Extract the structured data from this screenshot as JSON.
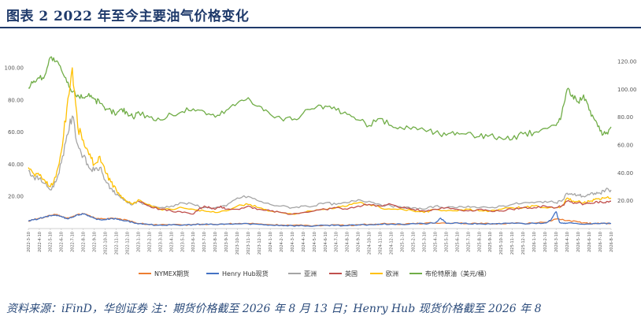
{
  "header": {
    "title": "图表 2    2022 年至今主要油气价格变化"
  },
  "footer": {
    "source": "资料来源：iFinD，华创证券  注：期货价格截至 2026 年 8 月 13 日；Henry Hub 现货价格截至 2026 年 8"
  },
  "chart_data": {
    "type": "line",
    "grid": false,
    "legend_position": "bottom",
    "y_left": {
      "ticks": [
        "20.00",
        "40.00",
        "60.00",
        "80.00",
        "100.00"
      ],
      "range": [
        0,
        115
      ]
    },
    "y_right": {
      "ticks": [
        "20.00",
        "40.00",
        "60.00",
        "80.00",
        "100.00",
        "120.00"
      ],
      "range": [
        0,
        130
      ]
    },
    "x_ticks": [
      "2022-3-10",
      "2022-4-10",
      "2022-5-10",
      "2022-6-10",
      "2022-7-10",
      "2022-8-10",
      "2022-9-10",
      "2022-10-10",
      "2022-11-10",
      "2022-12-10",
      "2023-1-10",
      "2023-2-10",
      "2023-3-10",
      "2023-4-10",
      "2023-5-10",
      "2023-6-10",
      "2023-7-10",
      "2023-8-10",
      "2023-9-10",
      "2023-10-10",
      "2023-11-10",
      "2023-12-10",
      "2024-1-10",
      "2024-2-10",
      "2024-3-10",
      "2024-4-10",
      "2024-5-10",
      "2024-6-10",
      "2024-7-10",
      "2024-8-10",
      "2024-9-10",
      "2024-10-10",
      "2024-11-10",
      "2024-12-10",
      "2025-1-10",
      "2025-2-10",
      "2025-3-10",
      "2025-4-10",
      "2025-5-10",
      "2025-6-10",
      "2025-7-10",
      "2025-8-10",
      "2025-9-10",
      "2025-10-10",
      "2025-11-10",
      "2025-12-10",
      "2026-1-10",
      "2026-2-10",
      "2026-3-10",
      "2026-4-10",
      "2026-5-10",
      "2026-6-10",
      "2026-7-10",
      "2026-8-10"
    ],
    "series": [
      {
        "name": "NYMEX期货",
        "axis": "left",
        "color": "#ed7d31",
        "x": [
          0,
          0.5,
          1,
          1.5,
          2,
          2.5,
          3,
          3.5,
          4,
          4.5,
          5,
          5.5,
          6,
          6.5,
          7,
          7.5,
          8,
          8.5,
          9,
          9.5,
          10,
          11,
          12,
          13,
          14,
          15,
          16,
          17,
          18,
          19,
          20,
          21,
          22,
          23,
          24,
          25,
          26,
          27,
          28,
          29,
          30,
          31,
          32,
          33,
          34,
          35,
          36,
          37,
          38,
          39,
          40,
          41,
          42,
          43,
          44,
          45,
          46,
          47,
          48,
          49,
          50,
          50.5,
          51,
          51.5,
          52,
          52.5,
          53
        ],
        "values": [
          4.7,
          5.6,
          6.3,
          7.2,
          8.2,
          8.6,
          7.7,
          6.4,
          7.3,
          8.8,
          9.2,
          8.1,
          6.6,
          6.1,
          6.0,
          6.6,
          6.2,
          5.5,
          5.2,
          4.3,
          3.2,
          2.6,
          2.3,
          2.3,
          2.2,
          2.6,
          2.7,
          2.6,
          2.9,
          3.0,
          3.2,
          2.8,
          2.4,
          2.2,
          2.0,
          1.9,
          1.8,
          2.2,
          2.3,
          2.0,
          2.4,
          2.6,
          2.8,
          3.0,
          2.7,
          3.3,
          3.2,
          3.5,
          3.4,
          3.7,
          3.0,
          3.1,
          2.9,
          3.0,
          3.6,
          3.2,
          3.4,
          3.8,
          6.0,
          5.0,
          4.1,
          3.6,
          3.2,
          3.0,
          3.1,
          3.3,
          3.2
        ]
      },
      {
        "name": "Henry Hub现货",
        "axis": "left",
        "color": "#4472c4",
        "x": [
          0,
          0.5,
          1,
          1.5,
          2,
          2.5,
          3,
          3.5,
          4,
          4.5,
          5,
          5.5,
          6,
          6.5,
          7,
          7.5,
          8,
          8.5,
          9,
          9.5,
          10,
          11,
          12,
          13,
          14,
          15,
          16,
          17,
          18,
          19,
          20,
          21,
          22,
          23,
          24,
          25,
          26,
          27,
          28,
          29,
          30,
          31,
          32,
          33,
          34,
          35,
          36,
          37,
          37.5,
          38,
          39,
          40,
          41,
          42,
          43,
          44,
          45,
          46,
          47,
          47.5,
          48,
          48.3,
          48.6,
          49,
          50,
          51,
          52,
          53
        ],
        "values": [
          4.6,
          5.5,
          6.2,
          7.1,
          8.0,
          8.4,
          7.5,
          6.2,
          7.0,
          8.6,
          9.0,
          8.0,
          6.4,
          5.5,
          5.6,
          6.3,
          6.0,
          5.2,
          4.8,
          3.8,
          2.9,
          2.4,
          2.2,
          2.2,
          2.1,
          2.5,
          2.6,
          2.5,
          2.8,
          2.9,
          3.0,
          2.6,
          2.2,
          2.0,
          1.8,
          1.7,
          1.6,
          2.0,
          2.1,
          1.8,
          2.2,
          2.4,
          2.6,
          2.8,
          2.5,
          3.1,
          3.0,
          3.4,
          6.5,
          3.3,
          3.6,
          2.9,
          3.0,
          2.8,
          2.9,
          3.5,
          3.1,
          3.3,
          3.6,
          5.0,
          10.5,
          4.0,
          3.5,
          3.3,
          3.0,
          2.9,
          3.1,
          3.1
        ]
      },
      {
        "name": "亚洲",
        "axis": "left",
        "color": "#a5a5a5",
        "x": [
          0,
          0.5,
          1,
          1.5,
          2,
          2.5,
          3,
          3.5,
          4,
          4.5,
          5,
          5.5,
          6,
          6.5,
          7,
          7.5,
          8,
          8.5,
          9,
          9.5,
          10,
          11,
          12,
          13,
          14,
          15,
          16,
          17,
          18,
          19,
          20,
          21,
          22,
          23,
          24,
          25,
          26,
          27,
          28,
          29,
          30,
          31,
          32,
          33,
          34,
          35,
          36,
          37,
          38,
          39,
          40,
          41,
          42,
          43,
          44,
          45,
          46,
          47,
          48,
          48.5,
          49,
          49.5,
          50,
          50.5,
          51,
          51.5,
          52,
          52.5,
          53
        ],
        "values": [
          36,
          32,
          31,
          28,
          24,
          29,
          41,
          58,
          70,
          52,
          45,
          38,
          36,
          38,
          30,
          25,
          21,
          19,
          16,
          15,
          17,
          14,
          13,
          14,
          16,
          15,
          13,
          13,
          14,
          19,
          20,
          17,
          15,
          14,
          13,
          14,
          14,
          16,
          15,
          16,
          18,
          17,
          15,
          14,
          13,
          13,
          12,
          14,
          13,
          13,
          14,
          13,
          13,
          14,
          15,
          16,
          16,
          17,
          16,
          17,
          22,
          21,
          21,
          20,
          21,
          22,
          22,
          24,
          24
        ]
      },
      {
        "name": "英国",
        "axis": "left",
        "color": "#c0504d",
        "x": [
          10,
          11,
          12,
          13,
          14,
          15,
          15.5,
          16,
          16.5,
          17,
          17.5,
          18,
          19,
          20,
          21,
          22,
          23,
          24,
          25,
          26,
          27,
          28,
          29,
          30,
          31,
          32,
          33,
          34,
          35,
          36,
          37,
          38,
          39,
          40,
          41,
          42,
          43,
          44,
          45,
          46,
          47,
          48,
          48.5,
          49,
          49.5,
          50,
          50.5,
          51,
          51.5,
          52,
          52.5,
          53
        ],
        "values": [
          17,
          14,
          12,
          11,
          10,
          9,
          12,
          14,
          13,
          12,
          14,
          12,
          12,
          14,
          12,
          11,
          10,
          9,
          10,
          11,
          12,
          13,
          12,
          14,
          15,
          14,
          15,
          13,
          12,
          11,
          12,
          13,
          12,
          11,
          12,
          11,
          11,
          12,
          13,
          13,
          14,
          13,
          14,
          17,
          16,
          16,
          15,
          16,
          16,
          17,
          16,
          17
        ]
      },
      {
        "name": "欧洲",
        "axis": "left",
        "color": "#ffc000",
        "x": [
          0,
          0.5,
          1,
          1.5,
          2,
          2.5,
          3,
          3.5,
          4,
          4.5,
          5,
          5.5,
          6,
          6.5,
          7,
          7.5,
          8,
          8.5,
          9,
          9.5,
          10,
          11,
          12,
          13,
          14,
          15,
          16,
          17,
          18,
          19,
          20,
          21,
          22,
          23,
          24,
          25,
          26,
          27,
          28,
          29,
          30,
          31,
          32,
          33,
          34,
          35,
          36,
          37,
          38,
          39,
          40,
          41,
          42,
          43,
          44,
          45,
          46,
          47,
          48,
          48.5,
          49,
          49.5,
          50,
          50.5,
          51,
          51.5,
          52,
          52.5,
          53
        ],
        "values": [
          38,
          34,
          33,
          30,
          26,
          32,
          48,
          75,
          100,
          63,
          55,
          46,
          40,
          45,
          35,
          29,
          24,
          19,
          17,
          15,
          18,
          15,
          12,
          12,
          13,
          12,
          11,
          10,
          11,
          14,
          15,
          13,
          11,
          10,
          9,
          10,
          11,
          12,
          13,
          14,
          16,
          15,
          13,
          12,
          12,
          11,
          10,
          12,
          11,
          11,
          12,
          11,
          11,
          12,
          13,
          13,
          14,
          13,
          13,
          14,
          19,
          17,
          17,
          16,
          17,
          18,
          18,
          19,
          19
        ]
      },
      {
        "name": "布伦特原油（美元/桶）",
        "axis": "right",
        "color": "#70ad47",
        "x": [
          0,
          0.5,
          1,
          1.5,
          2,
          2.5,
          3,
          3.5,
          4,
          4.5,
          5,
          5.5,
          6,
          6.5,
          7,
          7.5,
          8,
          8.5,
          9,
          9.5,
          10,
          11,
          12,
          13,
          14,
          15,
          16,
          17,
          18,
          19,
          20,
          21,
          22,
          23,
          24,
          25,
          26,
          27,
          28,
          29,
          30,
          31,
          32,
          33,
          34,
          35,
          36,
          37,
          38,
          39,
          40,
          41,
          42,
          43,
          44,
          45,
          46,
          47,
          48,
          48.5,
          49,
          49.5,
          50,
          50.5,
          51,
          51.5,
          52,
          52.5,
          53
        ],
        "values": [
          101,
          106,
          108,
          110,
          123,
          120,
          114,
          105,
          98,
          96,
          94,
          97,
          93,
          90,
          85,
          85,
          82,
          86,
          83,
          80,
          84,
          80,
          78,
          82,
          84,
          86,
          84,
          80,
          85,
          90,
          94,
          88,
          82,
          79,
          78,
          83,
          86,
          88,
          85,
          82,
          78,
          74,
          79,
          74,
          72,
          73,
          71,
          69,
          67,
          69,
          69,
          66,
          67,
          65,
          64,
          68,
          69,
          72,
          74,
          82,
          100,
          96,
          91,
          96,
          85,
          78,
          70,
          68,
          73
        ]
      }
    ]
  }
}
